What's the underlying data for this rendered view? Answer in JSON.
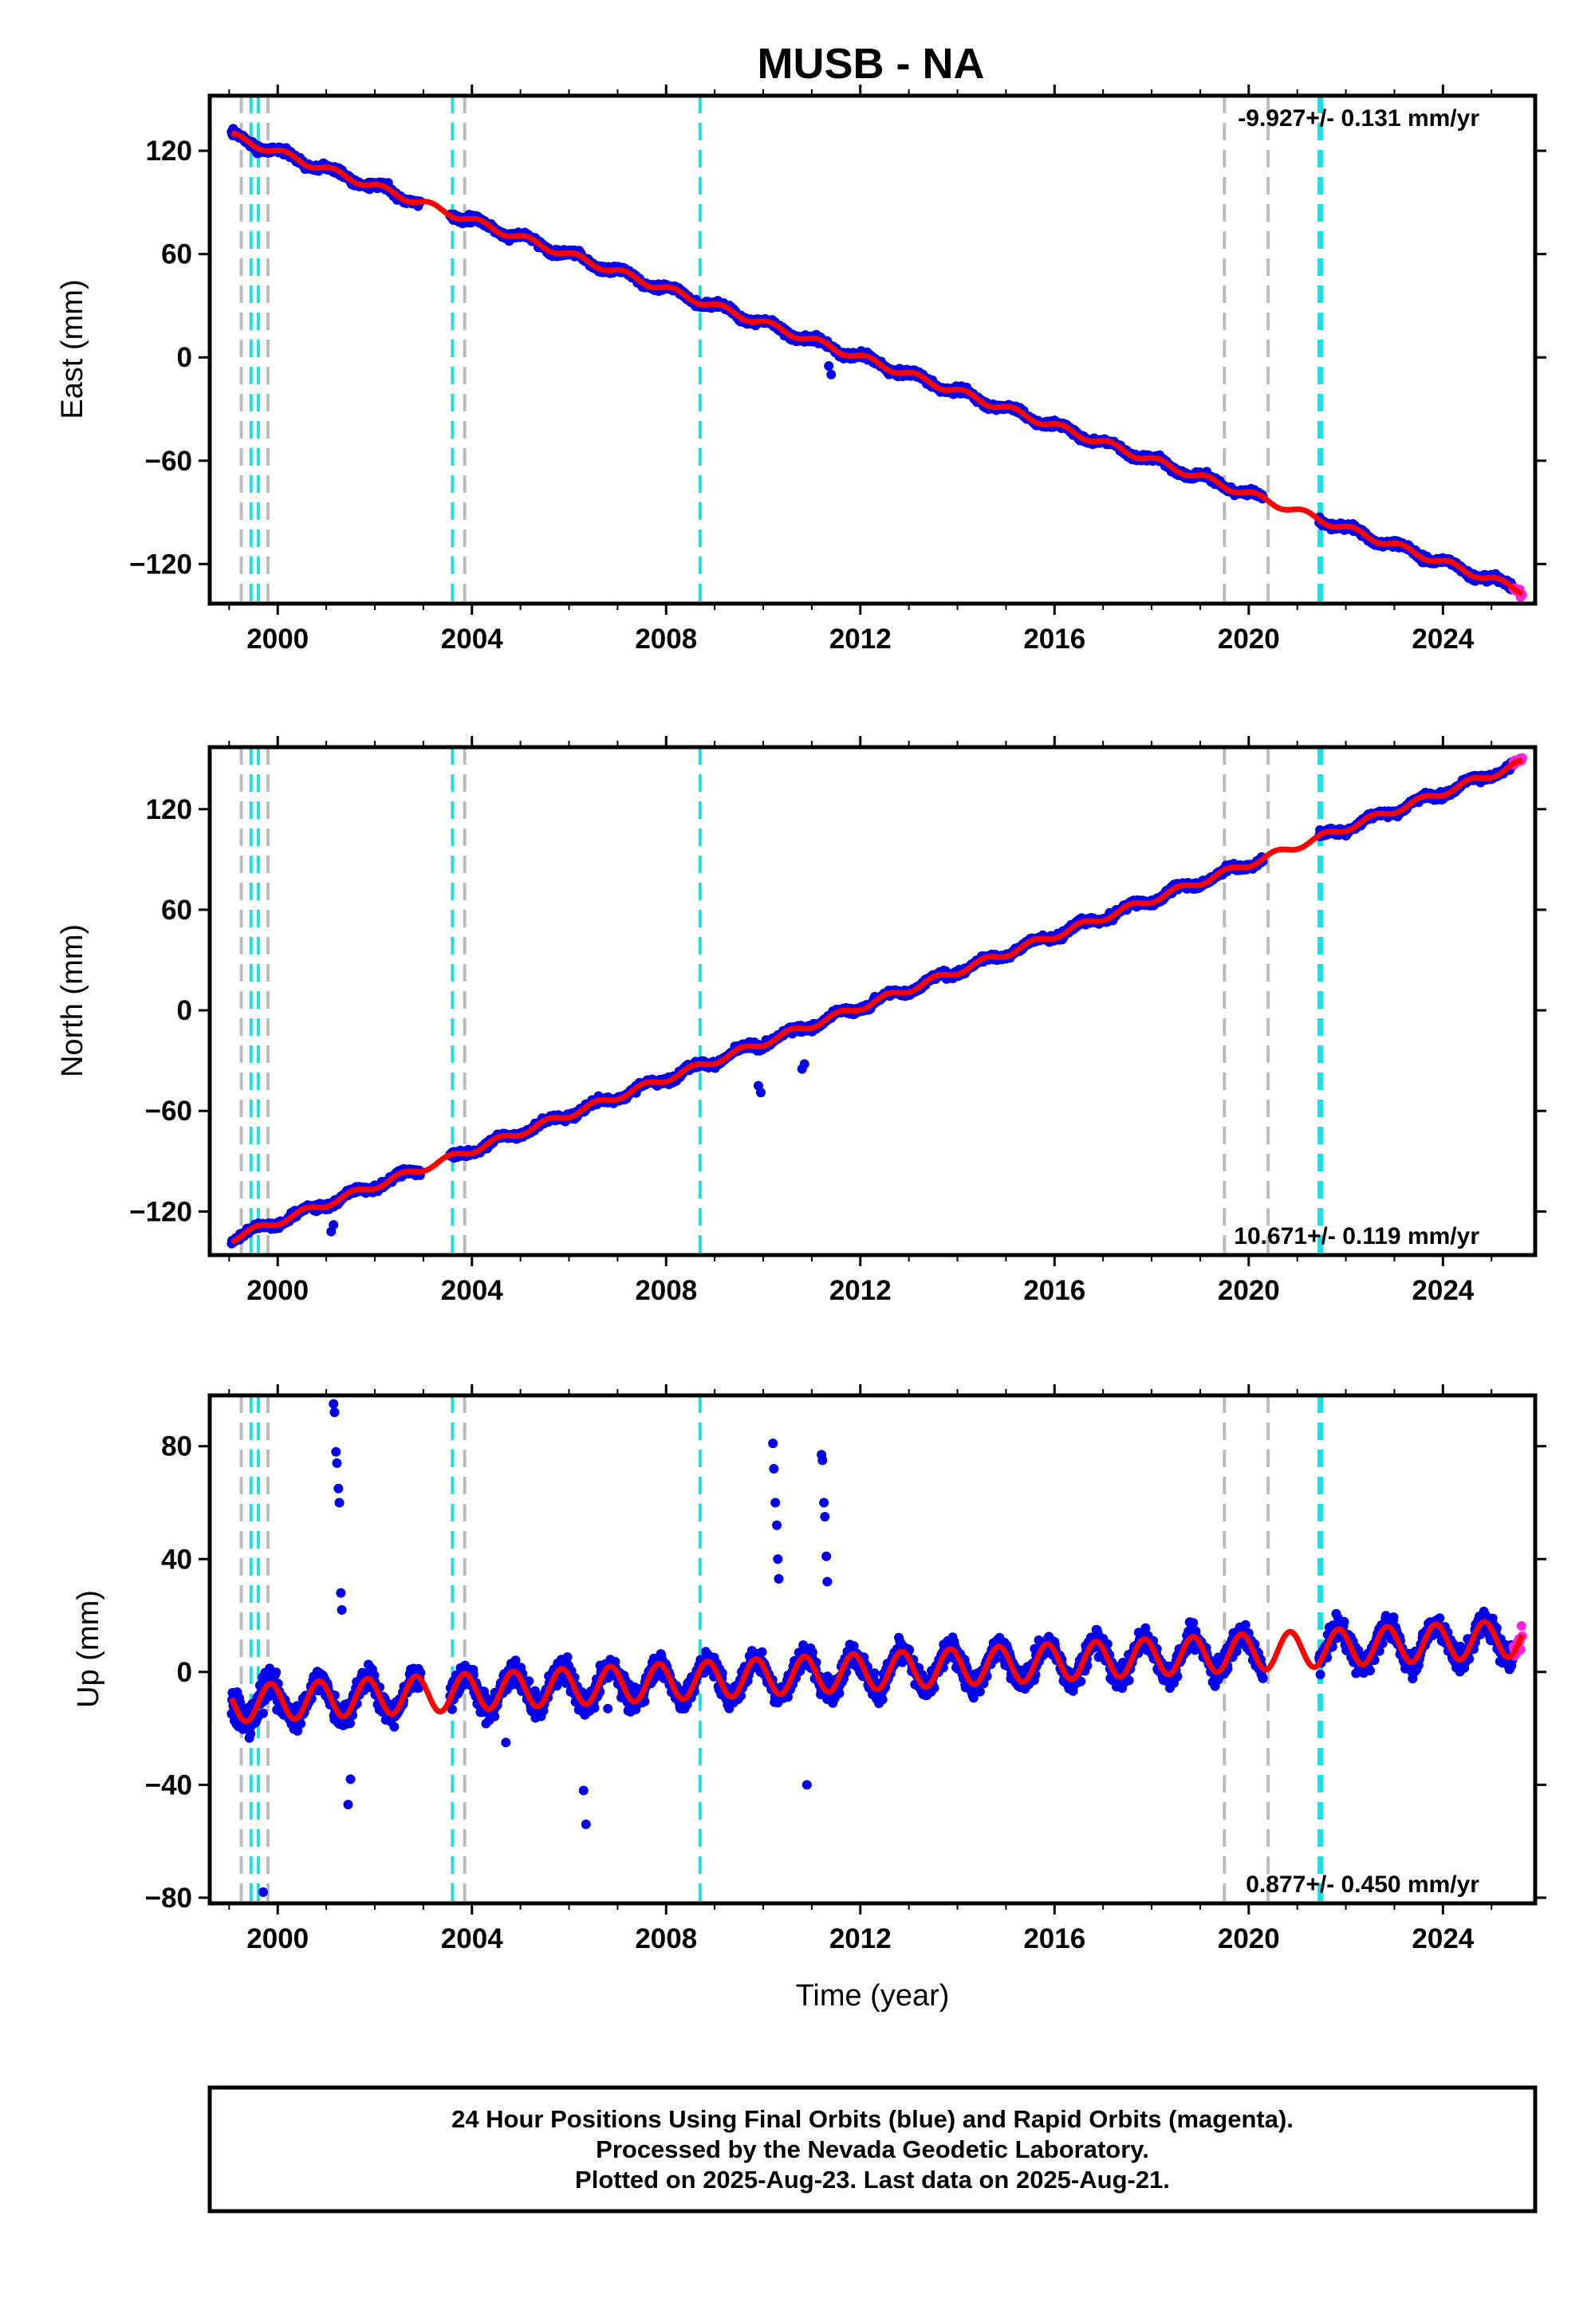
{
  "title": "MUSB - NA",
  "footer": [
    "24 Hour Positions Using Final Orbits (blue) and Rapid Orbits (magenta).",
    "Processed by the Nevada Geodetic Laboratory.",
    "Plotted on 2025-Aug-23. Last data on 2025-Aug-21."
  ],
  "colors": {
    "final_orbits": "#0000ee",
    "rapid_orbits": "#ff22dd",
    "model": "#ff0000",
    "equipment_change": "#22dddd",
    "other_event": "#bbbbbb"
  },
  "chart_data": [
    {
      "type": "scatter",
      "component": "east",
      "ylabel": "East (mm)",
      "xlabel": "",
      "xlim": [
        1998.6,
        2025.9
      ],
      "ylim": [
        -143,
        152
      ],
      "xticks": [
        2000,
        2004,
        2008,
        2012,
        2016,
        2020,
        2024
      ],
      "yticks": [
        -120,
        -60,
        0,
        60,
        120
      ],
      "rate_label": "-9.927+/- 0.131 mm/yr",
      "rate_position": "top-right",
      "data_start": 1999.05,
      "data_end": 2025.64,
      "rapid_start": 2025.45,
      "gaps": [
        [
          2002.95,
          2003.55
        ],
        [
          2020.3,
          2021.45
        ]
      ],
      "model": {
        "value_at_2012": 0,
        "rate": -9.927,
        "annual_amplitude": 2.0,
        "annual_phase": 0.9
      },
      "series_noise": 2.5,
      "outliers": [
        [
          2011.35,
          -5
        ],
        [
          2011.4,
          -10
        ],
        [
          2010.8,
          12
        ],
        [
          2010.85,
          9
        ]
      ],
      "cyan_lines": [
        1999.45,
        1999.6,
        2003.6,
        2008.7,
        2021.45,
        2021.5
      ],
      "gray_lines": [
        1999.25,
        1999.8,
        2003.85,
        2019.5,
        2020.4
      ]
    },
    {
      "type": "scatter",
      "component": "north",
      "ylabel": "North (mm)",
      "xlabel": "",
      "xlim": [
        1998.6,
        2025.9
      ],
      "ylim": [
        -146,
        157
      ],
      "xticks": [
        2000,
        2004,
        2008,
        2012,
        2016,
        2020,
        2024
      ],
      "yticks": [
        -120,
        -60,
        0,
        60,
        120
      ],
      "rate_label": "10.671+/- 0.119 mm/yr",
      "rate_position": "bottom-right",
      "data_start": 1999.05,
      "data_end": 2025.64,
      "rapid_start": 2025.45,
      "gaps": [
        [
          2002.95,
          2003.55
        ],
        [
          2020.3,
          2021.45
        ]
      ],
      "model": {
        "value_at_2012": 2,
        "rate": 10.671,
        "annual_amplitude": 2.0,
        "annual_phase": 0.3
      },
      "series_noise": 2.5,
      "outliers": [
        [
          2001.1,
          -132
        ],
        [
          2001.15,
          -128
        ],
        [
          2009.9,
          -45
        ],
        [
          2009.95,
          -49
        ],
        [
          2010.8,
          -35
        ],
        [
          2010.85,
          -32
        ]
      ],
      "cyan_lines": [
        1999.45,
        1999.6,
        2003.6,
        2008.7,
        2021.45,
        2021.5
      ],
      "gray_lines": [
        1999.25,
        1999.8,
        2003.85,
        2019.5,
        2020.4
      ]
    },
    {
      "type": "scatter",
      "component": "up",
      "ylabel": "Up (mm)",
      "xlabel": "Time (year)",
      "xlim": [
        1998.6,
        2025.9
      ],
      "ylim": [
        -82,
        98
      ],
      "xticks": [
        2000,
        2004,
        2008,
        2012,
        2016,
        2020,
        2024
      ],
      "yticks": [
        -80,
        -40,
        0,
        40,
        80
      ],
      "rate_label": "0.877+/- 0.450 mm/yr",
      "rate_position": "bottom-right",
      "data_start": 1999.05,
      "data_end": 2025.64,
      "rapid_start": 2025.45,
      "gaps": [
        [
          2002.95,
          2003.55
        ],
        [
          2020.3,
          2021.45
        ]
      ],
      "model": {
        "value_at_2012": 0,
        "rate": 0.877,
        "annual_amplitude": 6.5,
        "annual_phase": 0.6
      },
      "series_noise": 5.5,
      "outliers": [
        [
          2001.15,
          95
        ],
        [
          2001.17,
          92
        ],
        [
          2001.2,
          78
        ],
        [
          2001.22,
          74
        ],
        [
          2001.25,
          65
        ],
        [
          2001.27,
          60
        ],
        [
          2001.3,
          28
        ],
        [
          2001.32,
          22
        ],
        [
          2010.2,
          81
        ],
        [
          2010.22,
          72
        ],
        [
          2010.25,
          60
        ],
        [
          2010.28,
          52
        ],
        [
          2010.3,
          40
        ],
        [
          2010.32,
          33
        ],
        [
          2011.2,
          77
        ],
        [
          2011.22,
          75
        ],
        [
          2011.25,
          60
        ],
        [
          2011.27,
          55
        ],
        [
          2011.3,
          41
        ],
        [
          2011.32,
          32
        ],
        [
          2006.3,
          -42
        ],
        [
          2006.35,
          -54
        ],
        [
          2010.9,
          -40
        ],
        [
          1999.7,
          -78
        ],
        [
          2001.5,
          -38
        ],
        [
          2001.45,
          -47
        ],
        [
          2006.8,
          -13
        ],
        [
          2004.7,
          -25
        ]
      ],
      "cyan_lines": [
        1999.45,
        1999.6,
        2003.6,
        2008.7,
        2021.45,
        2021.5
      ],
      "gray_lines": [
        1999.25,
        1999.8,
        2003.85,
        2019.5,
        2020.4
      ]
    }
  ]
}
